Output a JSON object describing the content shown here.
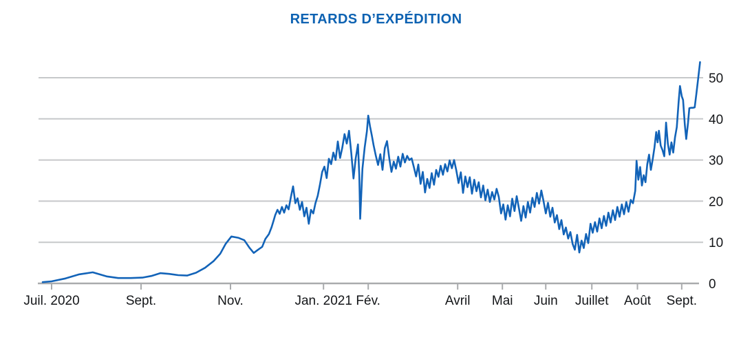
{
  "title": "RETARDS D’EXPÉDITION",
  "chart_data": {
    "type": "line",
    "title": "RETARDS D’EXPÉDITION",
    "xlabel": "",
    "ylabel": "",
    "x_unit": "months since Juil. 2020 (0 = Juil. 2020, 14.09 = Sept. 2021)",
    "y_unit": "retards (jours)",
    "xlim": [
      -0.35,
      15.1
    ],
    "ylim": [
      0,
      55.8
    ],
    "grid": "horizontal",
    "legend": "none",
    "x_ticks": [
      {
        "pos": 0,
        "label": "Juil. 2020"
      },
      {
        "pos": 2,
        "label": "Sept."
      },
      {
        "pos": 4,
        "label": "Nov."
      },
      {
        "pos": 6.08,
        "label": "Jan. 2021"
      },
      {
        "pos": 7.08,
        "label": "Fév."
      },
      {
        "pos": 9.08,
        "label": "Avril"
      },
      {
        "pos": 10.08,
        "label": "Mai"
      },
      {
        "pos": 11.05,
        "label": "Juin"
      },
      {
        "pos": 12.08,
        "label": "Juillet"
      },
      {
        "pos": 13.1,
        "label": "Août"
      },
      {
        "pos": 14.09,
        "label": "Sept."
      }
    ],
    "y_ticks": [
      0,
      10,
      20,
      30,
      40,
      50
    ],
    "colors": {
      "line": "#1263b8",
      "title": "#0d62b2",
      "grid": "#c6c8ca",
      "axis": "#a9abad",
      "label": "#141619"
    },
    "series": [
      {
        "name": "Retards d’expédition",
        "points": [
          [
            -0.2,
            0.3
          ],
          [
            0.0,
            0.5
          ],
          [
            0.31,
            1.2
          ],
          [
            0.62,
            2.2
          ],
          [
            0.92,
            2.7
          ],
          [
            1.23,
            1.7
          ],
          [
            1.49,
            1.3
          ],
          [
            1.77,
            1.3
          ],
          [
            2.03,
            1.4
          ],
          [
            2.23,
            1.8
          ],
          [
            2.43,
            2.5
          ],
          [
            2.63,
            2.3
          ],
          [
            2.83,
            2.0
          ],
          [
            3.03,
            1.9
          ],
          [
            3.23,
            2.6
          ],
          [
            3.43,
            3.8
          ],
          [
            3.62,
            5.4
          ],
          [
            3.77,
            7.2
          ],
          [
            3.89,
            9.6
          ],
          [
            4.02,
            11.4
          ],
          [
            4.17,
            11.1
          ],
          [
            4.31,
            10.5
          ],
          [
            4.43,
            8.6
          ],
          [
            4.52,
            7.4
          ],
          [
            4.63,
            8.3
          ],
          [
            4.71,
            8.9
          ],
          [
            4.78,
            10.8
          ],
          [
            4.86,
            12.0
          ],
          [
            4.92,
            13.7
          ],
          [
            4.97,
            15.5
          ],
          [
            5.0,
            16.6
          ],
          [
            5.05,
            17.9
          ],
          [
            5.1,
            16.9
          ],
          [
            5.15,
            18.6
          ],
          [
            5.2,
            17.2
          ],
          [
            5.25,
            19.0
          ],
          [
            5.3,
            18.0
          ],
          [
            5.35,
            21.0
          ],
          [
            5.4,
            23.6
          ],
          [
            5.45,
            19.5
          ],
          [
            5.5,
            20.7
          ],
          [
            5.55,
            17.9
          ],
          [
            5.6,
            19.8
          ],
          [
            5.65,
            16.3
          ],
          [
            5.7,
            18.4
          ],
          [
            5.75,
            14.5
          ],
          [
            5.8,
            17.9
          ],
          [
            5.85,
            17.0
          ],
          [
            5.9,
            19.5
          ],
          [
            5.95,
            21.3
          ],
          [
            6.0,
            24.0
          ],
          [
            6.05,
            27.1
          ],
          [
            6.1,
            28.4
          ],
          [
            6.15,
            25.6
          ],
          [
            6.2,
            30.3
          ],
          [
            6.25,
            29.0
          ],
          [
            6.3,
            31.8
          ],
          [
            6.35,
            30.0
          ],
          [
            6.4,
            34.5
          ],
          [
            6.45,
            30.5
          ],
          [
            6.5,
            33.0
          ],
          [
            6.55,
            36.3
          ],
          [
            6.6,
            34.0
          ],
          [
            6.65,
            37.1
          ],
          [
            6.7,
            31.8
          ],
          [
            6.75,
            25.5
          ],
          [
            6.8,
            30.4
          ],
          [
            6.85,
            33.8
          ],
          [
            6.88,
            26.3
          ],
          [
            6.9,
            15.7
          ],
          [
            6.95,
            27.9
          ],
          [
            7.0,
            33.0
          ],
          [
            7.05,
            37.0
          ],
          [
            7.08,
            40.8
          ],
          [
            7.12,
            38.2
          ],
          [
            7.16,
            36.0
          ],
          [
            7.2,
            33.6
          ],
          [
            7.25,
            31.0
          ],
          [
            7.3,
            28.8
          ],
          [
            7.35,
            31.4
          ],
          [
            7.4,
            27.6
          ],
          [
            7.45,
            32.9
          ],
          [
            7.5,
            34.6
          ],
          [
            7.55,
            30.4
          ],
          [
            7.6,
            27.1
          ],
          [
            7.65,
            29.6
          ],
          [
            7.7,
            27.9
          ],
          [
            7.75,
            30.8
          ],
          [
            7.8,
            28.4
          ],
          [
            7.85,
            31.5
          ],
          [
            7.9,
            29.4
          ],
          [
            7.95,
            31.0
          ],
          [
            8.0,
            30.0
          ],
          [
            8.05,
            30.4
          ],
          [
            8.1,
            28.3
          ],
          [
            8.15,
            26.0
          ],
          [
            8.2,
            28.9
          ],
          [
            8.25,
            24.2
          ],
          [
            8.3,
            27.1
          ],
          [
            8.35,
            22.1
          ],
          [
            8.4,
            25.4
          ],
          [
            8.45,
            23.2
          ],
          [
            8.5,
            26.8
          ],
          [
            8.55,
            24.0
          ],
          [
            8.6,
            27.6
          ],
          [
            8.65,
            25.9
          ],
          [
            8.7,
            28.6
          ],
          [
            8.75,
            26.4
          ],
          [
            8.8,
            29.0
          ],
          [
            8.85,
            27.2
          ],
          [
            8.9,
            29.9
          ],
          [
            8.95,
            28.0
          ],
          [
            9.0,
            30.0
          ],
          [
            9.05,
            27.4
          ],
          [
            9.1,
            24.4
          ],
          [
            9.15,
            27.0
          ],
          [
            9.2,
            22.0
          ],
          [
            9.25,
            26.0
          ],
          [
            9.3,
            23.4
          ],
          [
            9.35,
            25.8
          ],
          [
            9.4,
            21.8
          ],
          [
            9.45,
            25.2
          ],
          [
            9.5,
            22.4
          ],
          [
            9.55,
            24.6
          ],
          [
            9.6,
            20.9
          ],
          [
            9.65,
            23.8
          ],
          [
            9.7,
            20.2
          ],
          [
            9.75,
            22.8
          ],
          [
            9.8,
            19.8
          ],
          [
            9.85,
            22.2
          ],
          [
            9.9,
            20.4
          ],
          [
            9.95,
            23.0
          ],
          [
            10.0,
            21.0
          ],
          [
            10.05,
            17.0
          ],
          [
            10.1,
            19.2
          ],
          [
            10.15,
            15.5
          ],
          [
            10.2,
            19.0
          ],
          [
            10.25,
            16.3
          ],
          [
            10.3,
            20.6
          ],
          [
            10.35,
            17.6
          ],
          [
            10.4,
            21.2
          ],
          [
            10.45,
            18.2
          ],
          [
            10.5,
            15.2
          ],
          [
            10.55,
            18.8
          ],
          [
            10.6,
            16.0
          ],
          [
            10.65,
            19.8
          ],
          [
            10.7,
            17.2
          ],
          [
            10.75,
            20.8
          ],
          [
            10.8,
            18.6
          ],
          [
            10.85,
            22.0
          ],
          [
            10.9,
            19.4
          ],
          [
            10.95,
            22.6
          ],
          [
            11.0,
            20.0
          ],
          [
            11.05,
            17.0
          ],
          [
            11.1,
            19.6
          ],
          [
            11.15,
            16.2
          ],
          [
            11.2,
            18.4
          ],
          [
            11.25,
            14.8
          ],
          [
            11.3,
            16.6
          ],
          [
            11.35,
            13.2
          ],
          [
            11.4,
            15.4
          ],
          [
            11.45,
            11.9
          ],
          [
            11.5,
            13.6
          ],
          [
            11.55,
            10.9
          ],
          [
            11.6,
            12.5
          ],
          [
            11.65,
            9.6
          ],
          [
            11.7,
            8.2
          ],
          [
            11.75,
            11.8
          ],
          [
            11.8,
            7.5
          ],
          [
            11.85,
            10.4
          ],
          [
            11.9,
            8.6
          ],
          [
            11.95,
            12.0
          ],
          [
            12.0,
            9.8
          ],
          [
            12.05,
            14.5
          ],
          [
            12.1,
            12.3
          ],
          [
            12.15,
            14.9
          ],
          [
            12.2,
            12.6
          ],
          [
            12.25,
            15.8
          ],
          [
            12.3,
            13.4
          ],
          [
            12.35,
            16.4
          ],
          [
            12.4,
            14.0
          ],
          [
            12.45,
            17.2
          ],
          [
            12.5,
            14.8
          ],
          [
            12.55,
            17.8
          ],
          [
            12.6,
            15.4
          ],
          [
            12.65,
            18.6
          ],
          [
            12.7,
            16.2
          ],
          [
            12.75,
            19.2
          ],
          [
            12.8,
            16.8
          ],
          [
            12.85,
            19.8
          ],
          [
            12.9,
            17.4
          ],
          [
            12.95,
            20.3
          ],
          [
            13.0,
            19.5
          ],
          [
            13.05,
            22.5
          ],
          [
            13.08,
            29.8
          ],
          [
            13.12,
            25.2
          ],
          [
            13.16,
            28.3
          ],
          [
            13.2,
            23.8
          ],
          [
            13.24,
            26.3
          ],
          [
            13.28,
            24.6
          ],
          [
            13.32,
            29.0
          ],
          [
            13.36,
            31.3
          ],
          [
            13.4,
            27.6
          ],
          [
            13.44,
            30.1
          ],
          [
            13.48,
            33.0
          ],
          [
            13.52,
            36.8
          ],
          [
            13.55,
            34.3
          ],
          [
            13.58,
            37.1
          ],
          [
            13.62,
            33.5
          ],
          [
            13.66,
            32.4
          ],
          [
            13.7,
            30.9
          ],
          [
            13.74,
            39.1
          ],
          [
            13.78,
            34.0
          ],
          [
            13.82,
            31.3
          ],
          [
            13.86,
            34.3
          ],
          [
            13.9,
            31.8
          ],
          [
            13.94,
            35.5
          ],
          [
            13.98,
            38.0
          ],
          [
            14.02,
            44.0
          ],
          [
            14.05,
            48.0
          ],
          [
            14.09,
            45.5
          ],
          [
            14.12,
            44.6
          ],
          [
            14.16,
            38.5
          ],
          [
            14.19,
            35.1
          ],
          [
            14.23,
            39.0
          ],
          [
            14.26,
            42.6
          ],
          [
            14.3,
            42.7
          ],
          [
            14.34,
            42.7
          ],
          [
            14.38,
            42.8
          ],
          [
            14.42,
            46.3
          ],
          [
            14.46,
            50.0
          ],
          [
            14.5,
            53.8
          ]
        ]
      }
    ]
  }
}
